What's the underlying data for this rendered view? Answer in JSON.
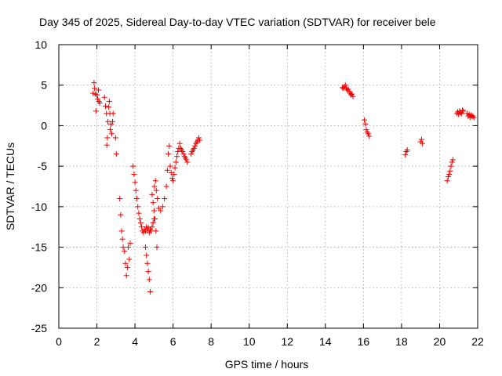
{
  "chart_data": {
    "type": "scatter",
    "title": "Day 345 of 2025, Sidereal Day-to-day VTEC variation (SDTVAR) for receiver bele",
    "xlabel": "GPS time / hours",
    "ylabel": "SDTVAR / TECUs",
    "xlim": [
      0,
      22
    ],
    "ylim": [
      -25,
      10
    ],
    "xticks": [
      "0",
      "2",
      "4",
      "6",
      "8",
      "10",
      "12",
      "14",
      "16",
      "18",
      "20",
      "22"
    ],
    "yticks": [
      "10",
      "5",
      "0",
      "-5",
      "-10",
      "-15",
      "-20",
      "-25"
    ],
    "xtick_values": [
      0,
      2,
      4,
      6,
      8,
      10,
      12,
      14,
      16,
      18,
      20,
      22
    ],
    "ytick_values": [
      10,
      5,
      0,
      -5,
      -10,
      -15,
      -20,
      -25
    ],
    "grid": true,
    "marker": "+",
    "color": "#ee0000",
    "segments": [
      [
        [
          1.8,
          4.0
        ],
        [
          1.85,
          5.3
        ],
        [
          1.88,
          4.6
        ],
        [
          1.92,
          3.9
        ],
        [
          1.95,
          1.8
        ],
        [
          2.0,
          3.8
        ],
        [
          2.04,
          3.3
        ],
        [
          2.08,
          4.4
        ],
        [
          2.1,
          3.0
        ],
        [
          2.15,
          2.8
        ]
      ],
      [
        [
          2.4,
          3.5
        ],
        [
          2.45,
          2.4
        ],
        [
          2.5,
          1.5
        ],
        [
          2.52,
          -2.4
        ],
        [
          2.55,
          -1.5
        ],
        [
          2.58,
          0.5
        ],
        [
          2.62,
          2.3
        ],
        [
          2.65,
          3.0
        ],
        [
          2.68,
          1.5
        ],
        [
          2.7,
          -0.5
        ],
        [
          2.74,
          0.2
        ],
        [
          2.78,
          -1.0
        ],
        [
          2.82,
          0.5
        ],
        [
          2.85,
          1.5
        ],
        [
          2.98,
          -1.5
        ],
        [
          3.02,
          -3.5
        ]
      ],
      [
        [
          3.2,
          -9.0
        ],
        [
          3.25,
          -11.0
        ],
        [
          3.3,
          -13.0
        ],
        [
          3.34,
          -14.0
        ],
        [
          3.38,
          -15.0
        ],
        [
          3.45,
          -15.5
        ],
        [
          3.5,
          -17.0
        ],
        [
          3.55,
          -18.5
        ],
        [
          3.6,
          -17.5
        ],
        [
          3.65,
          -15.0
        ],
        [
          3.7,
          -16.5
        ],
        [
          3.75,
          -14.5
        ]
      ],
      [
        [
          3.9,
          -5.0
        ],
        [
          3.95,
          -6.0
        ],
        [
          4.0,
          -7.0
        ],
        [
          4.05,
          -8.0
        ],
        [
          4.1,
          -9.0
        ],
        [
          4.15,
          -10.0
        ],
        [
          4.2,
          -10.8
        ],
        [
          4.25,
          -11.5
        ],
        [
          4.3,
          -12.0
        ],
        [
          4.35,
          -12.5
        ],
        [
          4.4,
          -13.0
        ],
        [
          4.45,
          -13.2
        ],
        [
          4.5,
          -12.8
        ],
        [
          4.55,
          -13.0
        ],
        [
          4.6,
          -12.5
        ],
        [
          4.65,
          -13.0
        ],
        [
          4.7,
          -12.6
        ],
        [
          4.75,
          -13.2
        ],
        [
          4.8,
          -12.8
        ],
        [
          4.85,
          -13.0
        ],
        [
          4.9,
          -12.5
        ],
        [
          4.95,
          -12.0
        ],
        [
          5.0,
          -11.5
        ]
      ],
      [
        [
          4.55,
          -15.0
        ],
        [
          4.6,
          -16.0
        ],
        [
          4.65,
          -17.0
        ],
        [
          4.7,
          -18.0
        ],
        [
          4.75,
          -19.0
        ],
        [
          4.8,
          -20.5
        ]
      ],
      [
        [
          4.9,
          -8.5
        ],
        [
          4.95,
          -9.5
        ],
        [
          5.0,
          -10.5
        ],
        [
          5.05,
          -11.5
        ],
        [
          5.1,
          -13.0
        ],
        [
          5.15,
          -15.0
        ],
        [
          5.02,
          -7.5
        ],
        [
          5.08,
          -6.8
        ],
        [
          5.12,
          -8.0
        ],
        [
          5.18,
          -9.0
        ],
        [
          5.25,
          -10.2
        ],
        [
          5.35,
          -10.5
        ],
        [
          5.45,
          -10.0
        ],
        [
          5.55,
          -9.0
        ],
        [
          5.65,
          -7.5
        ],
        [
          5.7,
          -5.5
        ],
        [
          5.75,
          -3.5
        ],
        [
          5.8,
          -2.5
        ]
      ],
      [
        [
          5.85,
          -5.0
        ],
        [
          5.9,
          -5.8
        ],
        [
          5.95,
          -6.5
        ],
        [
          6.0,
          -6.8
        ],
        [
          6.05,
          -6.0
        ],
        [
          6.1,
          -5.2
        ],
        [
          6.15,
          -4.5
        ],
        [
          6.2,
          -3.8
        ],
        [
          6.25,
          -3.2
        ],
        [
          6.3,
          -2.8
        ],
        [
          6.35,
          -2.2
        ],
        [
          6.4,
          -2.8
        ],
        [
          6.45,
          -3.0
        ],
        [
          6.5,
          -3.2
        ],
        [
          6.55,
          -3.5
        ],
        [
          6.6,
          -3.8
        ],
        [
          6.65,
          -4.0
        ],
        [
          6.7,
          -4.2
        ],
        [
          6.75,
          -4.5
        ]
      ],
      [
        [
          6.95,
          -3.5
        ],
        [
          7.0,
          -3.2
        ],
        [
          7.05,
          -3.0
        ],
        [
          7.1,
          -2.8
        ],
        [
          7.15,
          -2.5
        ],
        [
          7.2,
          -2.2
        ],
        [
          7.25,
          -2.0
        ],
        [
          7.3,
          -1.8
        ],
        [
          7.35,
          -1.5
        ],
        [
          7.4,
          -1.8
        ]
      ],
      [
        [
          14.9,
          4.7
        ],
        [
          14.95,
          4.6
        ],
        [
          15.0,
          4.8
        ],
        [
          15.05,
          5.0
        ],
        [
          15.1,
          4.6
        ],
        [
          15.15,
          4.4
        ],
        [
          15.2,
          4.5
        ],
        [
          15.25,
          4.2
        ],
        [
          15.3,
          4.0
        ],
        [
          15.35,
          3.8
        ],
        [
          15.4,
          3.9
        ],
        [
          15.45,
          3.6
        ]
      ],
      [
        [
          16.05,
          0.7
        ],
        [
          16.1,
          0.2
        ],
        [
          16.15,
          -0.5
        ],
        [
          16.2,
          -0.8
        ],
        [
          16.25,
          -1.0
        ],
        [
          16.3,
          -1.3
        ]
      ],
      [
        [
          18.2,
          -3.6
        ],
        [
          18.25,
          -3.2
        ],
        [
          18.3,
          -3.0
        ]
      ],
      [
        [
          19.0,
          -2.0
        ],
        [
          19.05,
          -1.7
        ],
        [
          19.1,
          -2.2
        ]
      ],
      [
        [
          20.4,
          -6.8
        ],
        [
          20.45,
          -6.3
        ],
        [
          20.5,
          -6.0
        ],
        [
          20.55,
          -5.6
        ],
        [
          20.6,
          -5.0
        ],
        [
          20.65,
          -4.5
        ],
        [
          20.7,
          -4.2
        ]
      ],
      [
        [
          20.9,
          1.5
        ],
        [
          20.95,
          1.7
        ],
        [
          21.0,
          1.4
        ],
        [
          21.05,
          1.8
        ],
        [
          21.1,
          1.6
        ],
        [
          21.15,
          1.5
        ],
        [
          21.2,
          1.9
        ],
        [
          21.25,
          1.8
        ]
      ],
      [
        [
          21.45,
          1.5
        ],
        [
          21.5,
          1.2
        ],
        [
          21.55,
          1.4
        ],
        [
          21.6,
          1.0
        ],
        [
          21.65,
          1.3
        ],
        [
          21.7,
          1.1
        ],
        [
          21.75,
          1.2
        ],
        [
          21.8,
          1.0
        ]
      ]
    ]
  }
}
